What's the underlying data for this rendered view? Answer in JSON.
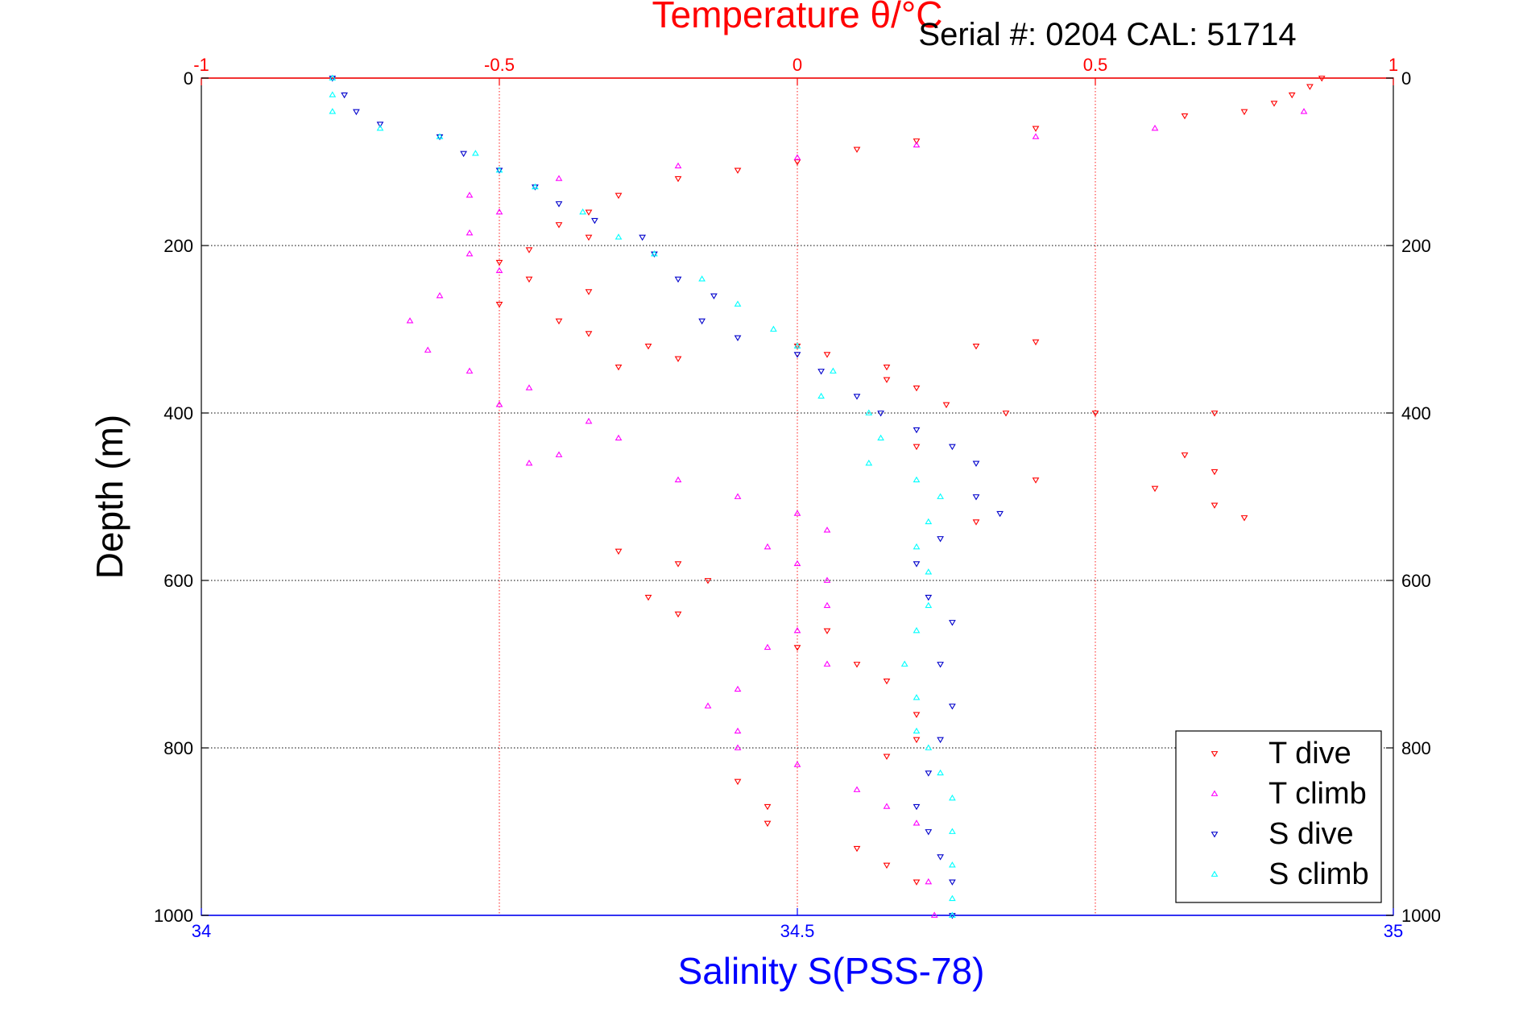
{
  "chart_data": {
    "type": "scatter",
    "title": "Temperature θ/°C",
    "subtitle": "Serial #: 0204  CAL: 51714",
    "ylabel": "Depth (m)",
    "xlabel": "Salinity S(PSS-78)",
    "ylim": [
      1000,
      0
    ],
    "y_ticks": [
      "0",
      "200",
      "400",
      "600",
      "800",
      "1000"
    ],
    "temperature_axis": {
      "range": [
        -1,
        1
      ],
      "ticks": [
        "-1",
        "-0.5",
        "0",
        "0.5",
        "1"
      ]
    },
    "salinity_axis": {
      "range": [
        34,
        35
      ],
      "ticks": [
        "34",
        "34.5",
        "35"
      ]
    },
    "grid": true,
    "legend_position": "bottom-right",
    "colors": {
      "temperature_axis": "#ff0000",
      "salinity_axis": "#0000ff",
      "t_dive": "#ff0000",
      "t_climb": "#ff00ff",
      "s_dive": "#0000cc",
      "s_climb": "#00ffff"
    },
    "series": [
      {
        "name": "T dive",
        "axis": "temperature",
        "marker": "down-triangle",
        "color": "#ff0000",
        "points": [
          [
            0.88,
            0
          ],
          [
            0.86,
            10
          ],
          [
            0.83,
            20
          ],
          [
            0.8,
            30
          ],
          [
            0.75,
            40
          ],
          [
            0.65,
            45
          ],
          [
            0.4,
            60
          ],
          [
            0.2,
            75
          ],
          [
            0.1,
            85
          ],
          [
            0.0,
            100
          ],
          [
            -0.1,
            110
          ],
          [
            -0.2,
            120
          ],
          [
            -0.3,
            140
          ],
          [
            -0.35,
            160
          ],
          [
            -0.4,
            175
          ],
          [
            -0.35,
            190
          ],
          [
            -0.45,
            205
          ],
          [
            -0.5,
            220
          ],
          [
            -0.45,
            240
          ],
          [
            -0.35,
            255
          ],
          [
            -0.5,
            270
          ],
          [
            -0.4,
            290
          ],
          [
            -0.35,
            305
          ],
          [
            -0.25,
            320
          ],
          [
            -0.2,
            335
          ],
          [
            -0.3,
            345
          ],
          [
            0.0,
            320
          ],
          [
            0.05,
            330
          ],
          [
            0.15,
            345
          ],
          [
            0.3,
            320
          ],
          [
            0.4,
            315
          ],
          [
            0.15,
            360
          ],
          [
            0.2,
            370
          ],
          [
            0.25,
            390
          ],
          [
            0.35,
            400
          ],
          [
            0.5,
            400
          ],
          [
            0.7,
            400
          ],
          [
            0.65,
            450
          ],
          [
            0.7,
            470
          ],
          [
            0.6,
            490
          ],
          [
            0.7,
            510
          ],
          [
            0.75,
            525
          ],
          [
            0.2,
            440
          ],
          [
            0.4,
            480
          ],
          [
            0.3,
            530
          ],
          [
            -0.3,
            565
          ],
          [
            -0.2,
            580
          ],
          [
            -0.15,
            600
          ],
          [
            -0.25,
            620
          ],
          [
            -0.2,
            640
          ],
          [
            0.05,
            660
          ],
          [
            0.0,
            680
          ],
          [
            0.1,
            700
          ],
          [
            0.15,
            720
          ],
          [
            0.2,
            760
          ],
          [
            0.2,
            790
          ],
          [
            0.15,
            810
          ],
          [
            -0.1,
            840
          ],
          [
            -0.05,
            870
          ],
          [
            -0.05,
            890
          ],
          [
            0.1,
            920
          ],
          [
            0.15,
            940
          ],
          [
            0.2,
            960
          ]
        ]
      },
      {
        "name": "T climb",
        "axis": "temperature",
        "marker": "up-triangle",
        "color": "#ff00ff",
        "points": [
          [
            0.85,
            40
          ],
          [
            0.6,
            60
          ],
          [
            0.4,
            70
          ],
          [
            0.2,
            80
          ],
          [
            0.0,
            95
          ],
          [
            -0.2,
            105
          ],
          [
            -0.4,
            120
          ],
          [
            -0.55,
            140
          ],
          [
            -0.5,
            160
          ],
          [
            -0.55,
            185
          ],
          [
            -0.55,
            210
          ],
          [
            -0.5,
            230
          ],
          [
            -0.6,
            260
          ],
          [
            -0.65,
            290
          ],
          [
            -0.62,
            325
          ],
          [
            -0.55,
            350
          ],
          [
            -0.45,
            370
          ],
          [
            -0.5,
            390
          ],
          [
            -0.35,
            410
          ],
          [
            -0.3,
            430
          ],
          [
            -0.4,
            450
          ],
          [
            -0.45,
            460
          ],
          [
            -0.2,
            480
          ],
          [
            -0.1,
            500
          ],
          [
            0.0,
            520
          ],
          [
            0.05,
            540
          ],
          [
            -0.05,
            560
          ],
          [
            0.0,
            580
          ],
          [
            0.05,
            600
          ],
          [
            0.05,
            630
          ],
          [
            0.0,
            660
          ],
          [
            -0.05,
            680
          ],
          [
            0.05,
            700
          ],
          [
            -0.1,
            730
          ],
          [
            -0.15,
            750
          ],
          [
            -0.1,
            780
          ],
          [
            -0.1,
            800
          ],
          [
            0.0,
            820
          ],
          [
            0.1,
            850
          ],
          [
            0.15,
            870
          ],
          [
            0.2,
            890
          ],
          [
            0.22,
            960
          ],
          [
            0.23,
            1000
          ]
        ]
      },
      {
        "name": "S dive",
        "axis": "salinity",
        "marker": "down-triangle",
        "color": "#0000cc",
        "points": [
          [
            34.11,
            0
          ],
          [
            34.12,
            20
          ],
          [
            34.13,
            40
          ],
          [
            34.15,
            55
          ],
          [
            34.2,
            70
          ],
          [
            34.22,
            90
          ],
          [
            34.25,
            110
          ],
          [
            34.28,
            130
          ],
          [
            34.3,
            150
          ],
          [
            34.33,
            170
          ],
          [
            34.37,
            190
          ],
          [
            34.38,
            210
          ],
          [
            34.4,
            240
          ],
          [
            34.43,
            260
          ],
          [
            34.42,
            290
          ],
          [
            34.45,
            310
          ],
          [
            34.5,
            330
          ],
          [
            34.52,
            350
          ],
          [
            34.55,
            380
          ],
          [
            34.57,
            400
          ],
          [
            34.6,
            420
          ],
          [
            34.63,
            440
          ],
          [
            34.65,
            460
          ],
          [
            34.65,
            500
          ],
          [
            34.67,
            520
          ],
          [
            34.62,
            550
          ],
          [
            34.6,
            580
          ],
          [
            34.61,
            620
          ],
          [
            34.63,
            650
          ],
          [
            34.62,
            700
          ],
          [
            34.63,
            750
          ],
          [
            34.62,
            790
          ],
          [
            34.61,
            830
          ],
          [
            34.6,
            870
          ],
          [
            34.61,
            900
          ],
          [
            34.62,
            930
          ],
          [
            34.63,
            960
          ],
          [
            34.63,
            1000
          ]
        ]
      },
      {
        "name": "S climb",
        "axis": "salinity",
        "marker": "up-triangle",
        "color": "#00ffff",
        "points": [
          [
            34.11,
            0
          ],
          [
            34.11,
            20
          ],
          [
            34.11,
            40
          ],
          [
            34.15,
            60
          ],
          [
            34.2,
            70
          ],
          [
            34.23,
            90
          ],
          [
            34.25,
            110
          ],
          [
            34.28,
            130
          ],
          [
            34.32,
            160
          ],
          [
            34.35,
            190
          ],
          [
            34.38,
            210
          ],
          [
            34.42,
            240
          ],
          [
            34.45,
            270
          ],
          [
            34.48,
            300
          ],
          [
            34.5,
            320
          ],
          [
            34.53,
            350
          ],
          [
            34.52,
            380
          ],
          [
            34.56,
            400
          ],
          [
            34.57,
            430
          ],
          [
            34.56,
            460
          ],
          [
            34.6,
            480
          ],
          [
            34.62,
            500
          ],
          [
            34.61,
            530
          ],
          [
            34.6,
            560
          ],
          [
            34.61,
            590
          ],
          [
            34.61,
            630
          ],
          [
            34.6,
            660
          ],
          [
            34.59,
            700
          ],
          [
            34.6,
            740
          ],
          [
            34.6,
            780
          ],
          [
            34.61,
            800
          ],
          [
            34.62,
            830
          ],
          [
            34.63,
            860
          ],
          [
            34.63,
            900
          ],
          [
            34.63,
            940
          ],
          [
            34.63,
            980
          ],
          [
            34.63,
            1000
          ]
        ]
      }
    ]
  }
}
